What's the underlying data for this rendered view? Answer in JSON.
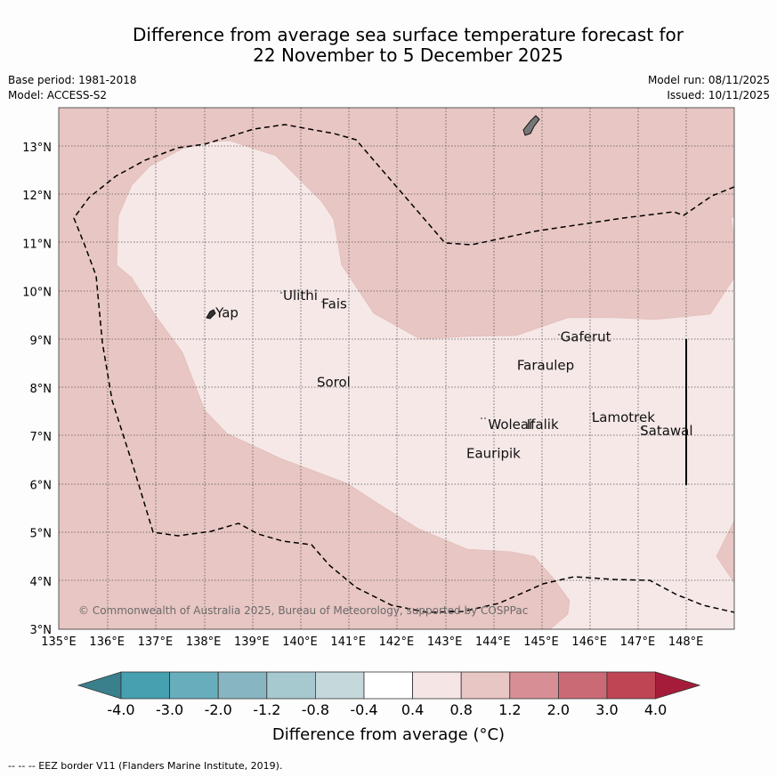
{
  "title": {
    "line1": "Difference from average sea surface temperature forecast for",
    "line2": "22 November to 5 December 2025"
  },
  "meta": {
    "base_period": "Base period: 1981-2018",
    "model": "Model: ACCESS-S2",
    "model_run": "Model run: 08/11/2025",
    "issued": "Issued: 10/11/2025"
  },
  "map": {
    "lat_labels": [
      "13°N",
      "12°N",
      "11°N",
      "10°N",
      "9°N",
      "8°N",
      "7°N",
      "6°N",
      "5°N",
      "4°N",
      "3°N"
    ],
    "lon_labels": [
      "135°E",
      "136°E",
      "137°E",
      "138°E",
      "139°E",
      "140°E",
      "141°E",
      "142°E",
      "143°E",
      "144°E",
      "145°E",
      "146°E",
      "147°E",
      "148°E"
    ],
    "places": [
      {
        "name": "Yap",
        "lon": 138.25,
        "lat": 9.47
      },
      {
        "name": "Ulithi",
        "lon": 139.65,
        "lat": 9.83
      },
      {
        "name": "Fais",
        "lon": 140.45,
        "lat": 9.65
      },
      {
        "name": "Gaferut",
        "lon": 145.4,
        "lat": 8.97
      },
      {
        "name": "Faraulep",
        "lon": 144.5,
        "lat": 8.38
      },
      {
        "name": "Sorol",
        "lon": 140.35,
        "lat": 8.03
      },
      {
        "name": "Woleai",
        "lon": 143.9,
        "lat": 7.15
      },
      {
        "name": "Ifalik",
        "lon": 144.7,
        "lat": 7.15
      },
      {
        "name": "Lamotrek",
        "lon": 146.05,
        "lat": 7.3
      },
      {
        "name": "Satawal",
        "lon": 147.05,
        "lat": 7.02
      },
      {
        "name": "Eauripik",
        "lon": 143.45,
        "lat": 6.55
      }
    ],
    "copyright": "© Commonwealth of Australia 2025, Bureau of Meteorology, supported by COSPPac"
  },
  "colorbar": {
    "labels": [
      "-4.0",
      "-3.0",
      "-2.0",
      "-1.2",
      "-0.8",
      "-0.4",
      "0.4",
      "0.8",
      "1.2",
      "2.0",
      "3.0",
      "4.0"
    ],
    "colors": [
      "#3a7f8c",
      "#46a0b0",
      "#68adbb",
      "#87b6c2",
      "#a6c8cf",
      "#c5d8dc",
      "#ffffff",
      "#f5e6e5",
      "#e8c6c3",
      "#d78f95",
      "#ca6a74",
      "#bf4555",
      "#a51c3a"
    ],
    "title": "Difference from average (°C)"
  },
  "legend": {
    "eez_text": "--  --  -- EEZ border V11 (Flanders Marine Institute, 2019)."
  }
}
